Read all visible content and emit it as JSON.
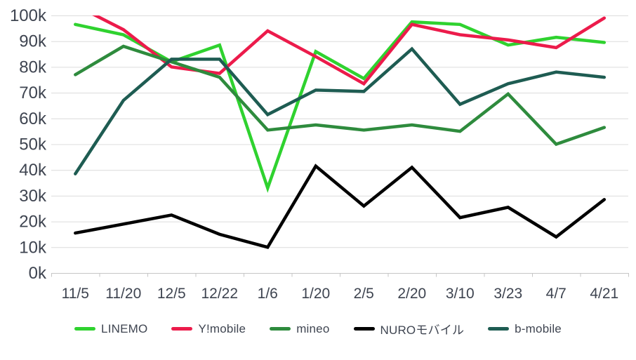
{
  "chart_data": {
    "type": "line",
    "unit": "thousands (k)",
    "categories": [
      "11/5",
      "11/20",
      "12/5",
      "12/22",
      "1/6",
      "1/20",
      "2/5",
      "2/20",
      "3/10",
      "3/23",
      "4/7",
      "4/21"
    ],
    "series": [
      {
        "name": "LINEMO",
        "color": "#2fd22f",
        "values": [
          96.5,
          92.5,
          82,
          88.5,
          33,
          86,
          75.5,
          97.5,
          96.5,
          88.5,
          91.5,
          89.5
        ]
      },
      {
        "name": "Y!mobile",
        "color": "#ec1b4b",
        "values": [
          104,
          94.5,
          80,
          77.5,
          94,
          84,
          73.5,
          96.5,
          92.5,
          90.5,
          87.5,
          99
        ]
      },
      {
        "name": "mineo",
        "color": "#2e8b3d",
        "values": [
          77,
          88,
          82,
          76,
          55.5,
          57.5,
          55.5,
          57.5,
          55,
          69.5,
          50,
          56.5
        ]
      },
      {
        "name": "NUROモバイル",
        "color": "#000000",
        "values": [
          15.5,
          19,
          22.5,
          15,
          10,
          41.5,
          26,
          41,
          21.5,
          25.5,
          14,
          28.5
        ]
      },
      {
        "name": "b-mobile",
        "color": "#1e5c52",
        "values": [
          38.5,
          67,
          83,
          83,
          61.5,
          71,
          70.5,
          87,
          65.5,
          73.5,
          78,
          76
        ]
      }
    ],
    "title": "",
    "xlabel": "",
    "ylabel": "",
    "ylim": [
      0,
      100
    ],
    "ytick_step": 10,
    "y_tick_labels": [
      "0k",
      "10k",
      "20k",
      "30k",
      "40k",
      "50k",
      "60k",
      "70k",
      "80k",
      "90k",
      "100k"
    ],
    "grid": true,
    "legend_position": "bottom",
    "note_clipping": "Y!mobile value at 11/5 exceeds the 100k axis maximum and is clipped at the plot top"
  },
  "style": {
    "axis_text_color": "#3e4450",
    "grid_color": "#dcdcdc",
    "axis_line_color": "#c6c6c6",
    "background": "#ffffff"
  }
}
